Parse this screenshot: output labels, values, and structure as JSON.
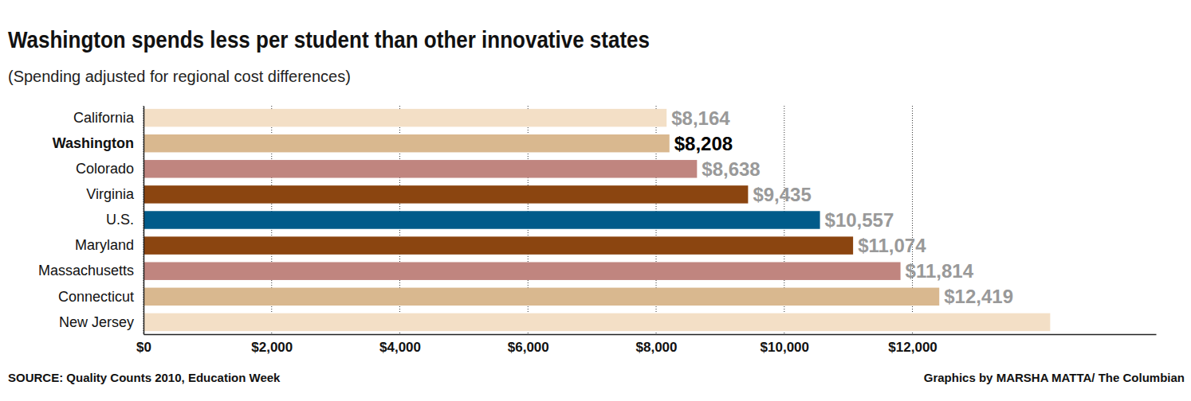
{
  "chart_data": {
    "type": "bar",
    "orientation": "horizontal",
    "title": "Washington spends less per student than other innovative states",
    "subtitle": "(Spending adjusted for regional cost differences)",
    "annotations": [
      "SOURCE: Quality Counts 2010, Education Week",
      "Graphics by MARSHA MATTA/ The Columbian"
    ],
    "categories": [
      "California",
      "Washington",
      "Colorado",
      "Virginia",
      "U.S.",
      "Maryland",
      "Massachusetts",
      "Connecticut",
      "New Jersey"
    ],
    "values": [
      8164,
      8208,
      8638,
      9435,
      10557,
      11074,
      11814,
      12419,
      14150
    ],
    "value_labels": [
      "$8,164",
      "$8,208",
      "$8,638",
      "$9,435",
      "$10,557",
      "$11,074",
      "$11,814",
      "$12,419",
      null
    ],
    "colors": [
      "#f3dfc6",
      "#d9b88f",
      "#c0857f",
      "#8b4510",
      "#005b8a",
      "#8b4510",
      "#c0857f",
      "#d9b88f",
      "#f3dfc6"
    ],
    "data_labels": true,
    "grid": true,
    "xlim": [
      0,
      15800
    ],
    "xticks": [
      {
        "value": 0,
        "label": "$0"
      },
      {
        "value": 2000,
        "label": "$2,000"
      },
      {
        "value": 4000,
        "label": "$4,000"
      },
      {
        "value": 6000,
        "label": "$6,000"
      },
      {
        "value": 8000,
        "label": "$8,000"
      },
      {
        "value": 10000,
        "label": "$10,000"
      },
      {
        "value": 12000,
        "label": "$12,000"
      }
    ]
  }
}
